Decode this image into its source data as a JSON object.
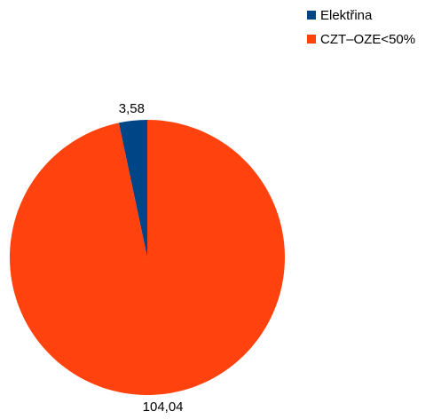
{
  "chart_data": {
    "type": "pie",
    "series": [
      {
        "name": "Elektřina",
        "value": 3.58,
        "label": "3,58",
        "color": "#004586"
      },
      {
        "name": "CZT–OZE<50%",
        "value": 104.04,
        "label": "104,04",
        "color": "#ff420e"
      }
    ],
    "title": "",
    "legend_position": "top-right",
    "start_angle_deg": 0,
    "direction": "counterclockwise"
  }
}
